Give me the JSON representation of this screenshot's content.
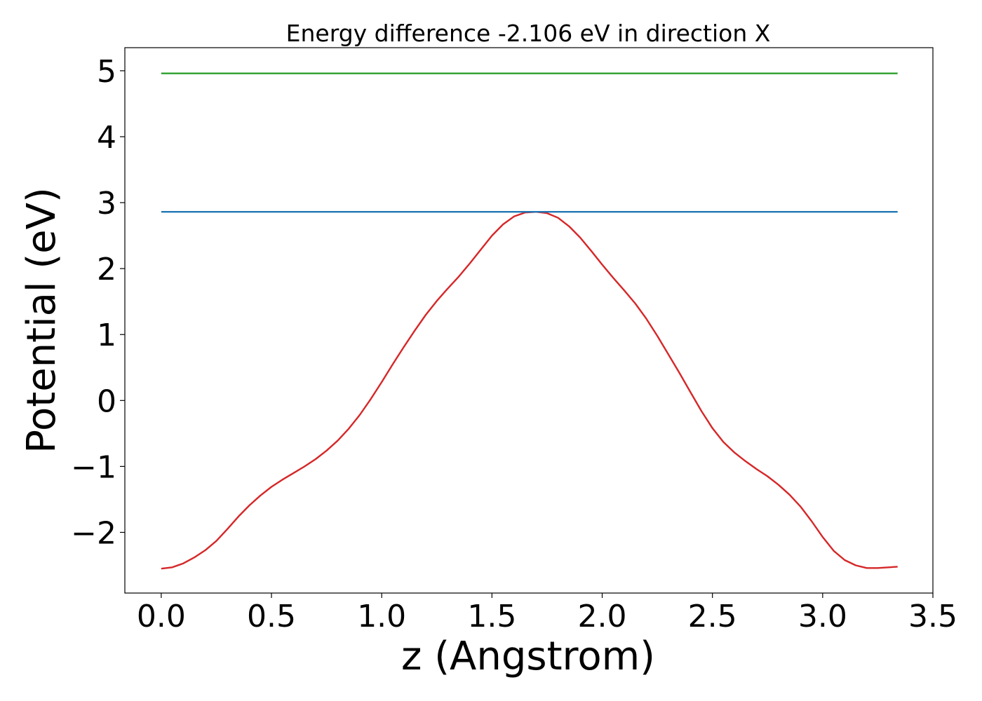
{
  "chart_data": {
    "type": "line",
    "title": "Energy difference -2.106 eV in direction X",
    "xlabel": "z (Angstrom)",
    "ylabel": "Potential (eV)",
    "xlim": [
      -0.165,
      3.5
    ],
    "ylim": [
      -2.92,
      5.35
    ],
    "xticks": [
      0.0,
      0.5,
      1.0,
      1.5,
      2.0,
      2.5,
      3.0,
      3.5
    ],
    "xtick_labels": [
      "0.0",
      "0.5",
      "1.0",
      "1.5",
      "2.0",
      "2.5",
      "3.0",
      "3.5"
    ],
    "yticks": [
      -2,
      -1,
      0,
      1,
      2,
      3,
      4,
      5
    ],
    "ytick_labels": [
      "−2",
      "−1",
      "0",
      "1",
      "2",
      "3",
      "4",
      "5"
    ],
    "grid": false,
    "series": [
      {
        "color": "#d62728",
        "x": [
          0.0,
          0.05,
          0.1,
          0.15,
          0.2,
          0.25,
          0.3,
          0.35,
          0.4,
          0.45,
          0.5,
          0.55,
          0.6,
          0.65,
          0.7,
          0.75,
          0.8,
          0.85,
          0.9,
          0.95,
          1.0,
          1.05,
          1.1,
          1.15,
          1.2,
          1.25,
          1.3,
          1.35,
          1.4,
          1.45,
          1.5,
          1.55,
          1.6,
          1.65,
          1.7,
          1.75,
          1.8,
          1.85,
          1.9,
          1.95,
          2.0,
          2.05,
          2.1,
          2.15,
          2.2,
          2.25,
          2.3,
          2.35,
          2.4,
          2.45,
          2.5,
          2.55,
          2.6,
          2.65,
          2.7,
          2.75,
          2.8,
          2.85,
          2.9,
          2.95,
          3.0,
          3.05,
          3.1,
          3.15,
          3.2,
          3.25,
          3.3,
          3.34
        ],
        "values": [
          -2.55,
          -2.53,
          -2.47,
          -2.38,
          -2.27,
          -2.13,
          -1.95,
          -1.76,
          -1.59,
          -1.44,
          -1.31,
          -1.2,
          -1.1,
          -1.0,
          -0.89,
          -0.76,
          -0.61,
          -0.43,
          -0.22,
          0.02,
          0.28,
          0.55,
          0.81,
          1.06,
          1.3,
          1.51,
          1.7,
          1.88,
          2.08,
          2.29,
          2.5,
          2.67,
          2.79,
          2.85,
          2.86,
          2.84,
          2.77,
          2.64,
          2.47,
          2.27,
          2.06,
          1.86,
          1.67,
          1.47,
          1.24,
          0.98,
          0.7,
          0.42,
          0.13,
          -0.16,
          -0.42,
          -0.63,
          -0.79,
          -0.92,
          -1.04,
          -1.15,
          -1.28,
          -1.43,
          -1.61,
          -1.83,
          -2.07,
          -2.28,
          -2.42,
          -2.5,
          -2.54,
          -2.54,
          -2.53,
          -2.52
        ]
      },
      {
        "color": "#1f77b4",
        "x": [
          0.0,
          3.34
        ],
        "values": [
          2.86,
          2.86
        ]
      },
      {
        "color": "#2ca02c",
        "x": [
          0.0,
          3.34
        ],
        "values": [
          4.96,
          4.96
        ]
      }
    ]
  }
}
